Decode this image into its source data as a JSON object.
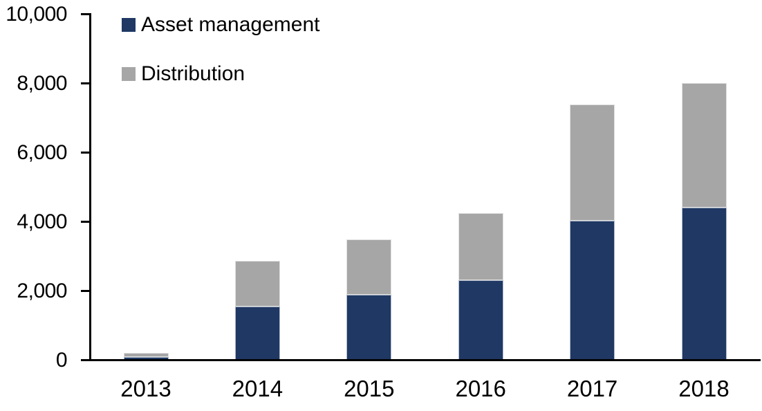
{
  "chart_data": {
    "type": "bar",
    "stacked": true,
    "title": "",
    "xlabel": "",
    "ylabel": "",
    "categories": [
      "2013",
      "2014",
      "2015",
      "2016",
      "2017",
      "2018"
    ],
    "series": [
      {
        "name": "Asset management",
        "color": "#1F3864",
        "values": [
          90,
          1550,
          1890,
          2310,
          4040,
          4420
        ]
      },
      {
        "name": "Distribution",
        "color": "#A6A6A6",
        "values": [
          120,
          1320,
          1610,
          1940,
          3360,
          3600
        ]
      }
    ],
    "totals": [
      210,
      2870,
      3500,
      4250,
      7400,
      8020
    ],
    "ylim": [
      0,
      10000
    ],
    "ytick_interval": 2000,
    "ytick_labels": [
      "0",
      "2,000",
      "4,000",
      "6,000",
      "8,000",
      "10,000"
    ],
    "grid": false,
    "legend_position": "top-left-inside",
    "axis_color": "#000000",
    "background_color": "#FFFFFF"
  }
}
